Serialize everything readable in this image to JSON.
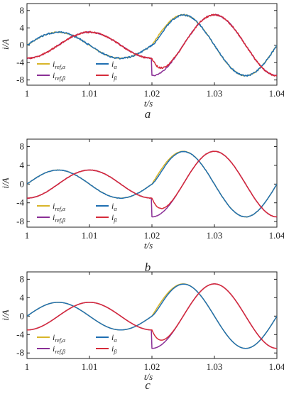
{
  "chart_data": [
    {
      "type": "line",
      "caption": "a",
      "xlabel": "t/s",
      "ylabel": "i/A",
      "xlim": [
        1.0,
        1.04
      ],
      "ylim": [
        -9.2,
        9.6
      ],
      "xticks": [
        "1",
        "1.01",
        "1.02",
        "1.03",
        "1.04"
      ],
      "yticks": [
        "8",
        "4",
        "0",
        "-4",
        "-8"
      ],
      "grid": false,
      "legend": "lower-left",
      "noise": "high",
      "series": [
        {
          "name": "i_ref,α",
          "label_main": "i",
          "label_sub": "ref,α",
          "color": "#d8b52a",
          "params": {
            "kind": "alpha",
            "offset": 0.0
          }
        },
        {
          "name": "i_ref,β",
          "label_main": "i",
          "label_sub": "ref,β",
          "color": "#8a2f96",
          "params": {
            "kind": "beta",
            "offset": 0.0
          }
        },
        {
          "name": "i_α",
          "label_main": "i",
          "label_sub": "α",
          "color": "#1f6fb2",
          "params": {
            "kind": "alpha",
            "offset": 0.0
          }
        },
        {
          "name": "i_β",
          "label_main": "i",
          "label_sub": "β",
          "color": "#d62b3a",
          "params": {
            "kind": "beta",
            "offset": 0.0
          }
        }
      ],
      "samples_description": "Pre-step (t<1.02 s): amplitude ≈3 A, 50 Hz; post-step (t≥1.02 s): amplitude ≈7 A, 50 Hz. i_α peaks ≈3 A at t≈1.005 s and ≈7 A at t≈1.025 s; i_β peaks ≈3 A at t≈1.01 s and ≈7 A at t≈1.03 s."
    },
    {
      "type": "line",
      "caption": "b",
      "xlabel": "t/s",
      "ylabel": "i/A",
      "xlim": [
        1.0,
        1.04
      ],
      "ylim": [
        -9.2,
        9.6
      ],
      "xticks": [
        "1",
        "1.01",
        "1.02",
        "1.03",
        "1.04"
      ],
      "yticks": [
        "8",
        "4",
        "0",
        "-4",
        "-8"
      ],
      "grid": false,
      "legend": "lower-left",
      "noise": "low",
      "series": [
        {
          "name": "i_ref,α",
          "label_main": "i",
          "label_sub": "ref,α",
          "color": "#d8b52a"
        },
        {
          "name": "i_ref,β",
          "label_main": "i",
          "label_sub": "ref,β",
          "color": "#8a2f96"
        },
        {
          "name": "i_α",
          "label_main": "i",
          "label_sub": "α",
          "color": "#1f6fb2"
        },
        {
          "name": "i_β",
          "label_main": "i",
          "label_sub": "β",
          "color": "#d62b3a"
        }
      ]
    },
    {
      "type": "line",
      "caption": "c",
      "xlabel": "t/s",
      "ylabel": "i/A",
      "xlim": [
        1.0,
        1.04
      ],
      "ylim": [
        -9.2,
        9.6
      ],
      "xticks": [
        "1",
        "1.01",
        "1.02",
        "1.03",
        "1.04"
      ],
      "yticks": [
        "8",
        "4",
        "0",
        "-4",
        "-8"
      ],
      "grid": false,
      "legend": "lower-left",
      "noise": "none",
      "series": [
        {
          "name": "i_ref,α",
          "label_main": "i",
          "label_sub": "ref,α",
          "color": "#d8b52a"
        },
        {
          "name": "i_ref,β",
          "label_main": "i",
          "label_sub": "ref,β",
          "color": "#8a2f96"
        },
        {
          "name": "i_α",
          "label_main": "i",
          "label_sub": "α",
          "color": "#1f6fb2"
        },
        {
          "name": "i_β",
          "label_main": "i",
          "label_sub": "β",
          "color": "#d62b3a"
        }
      ]
    }
  ],
  "signal": {
    "frequency_hz": 50,
    "amplitude_before_a": 3,
    "amplitude_after_a": 7,
    "step_time_s": 1.02
  }
}
